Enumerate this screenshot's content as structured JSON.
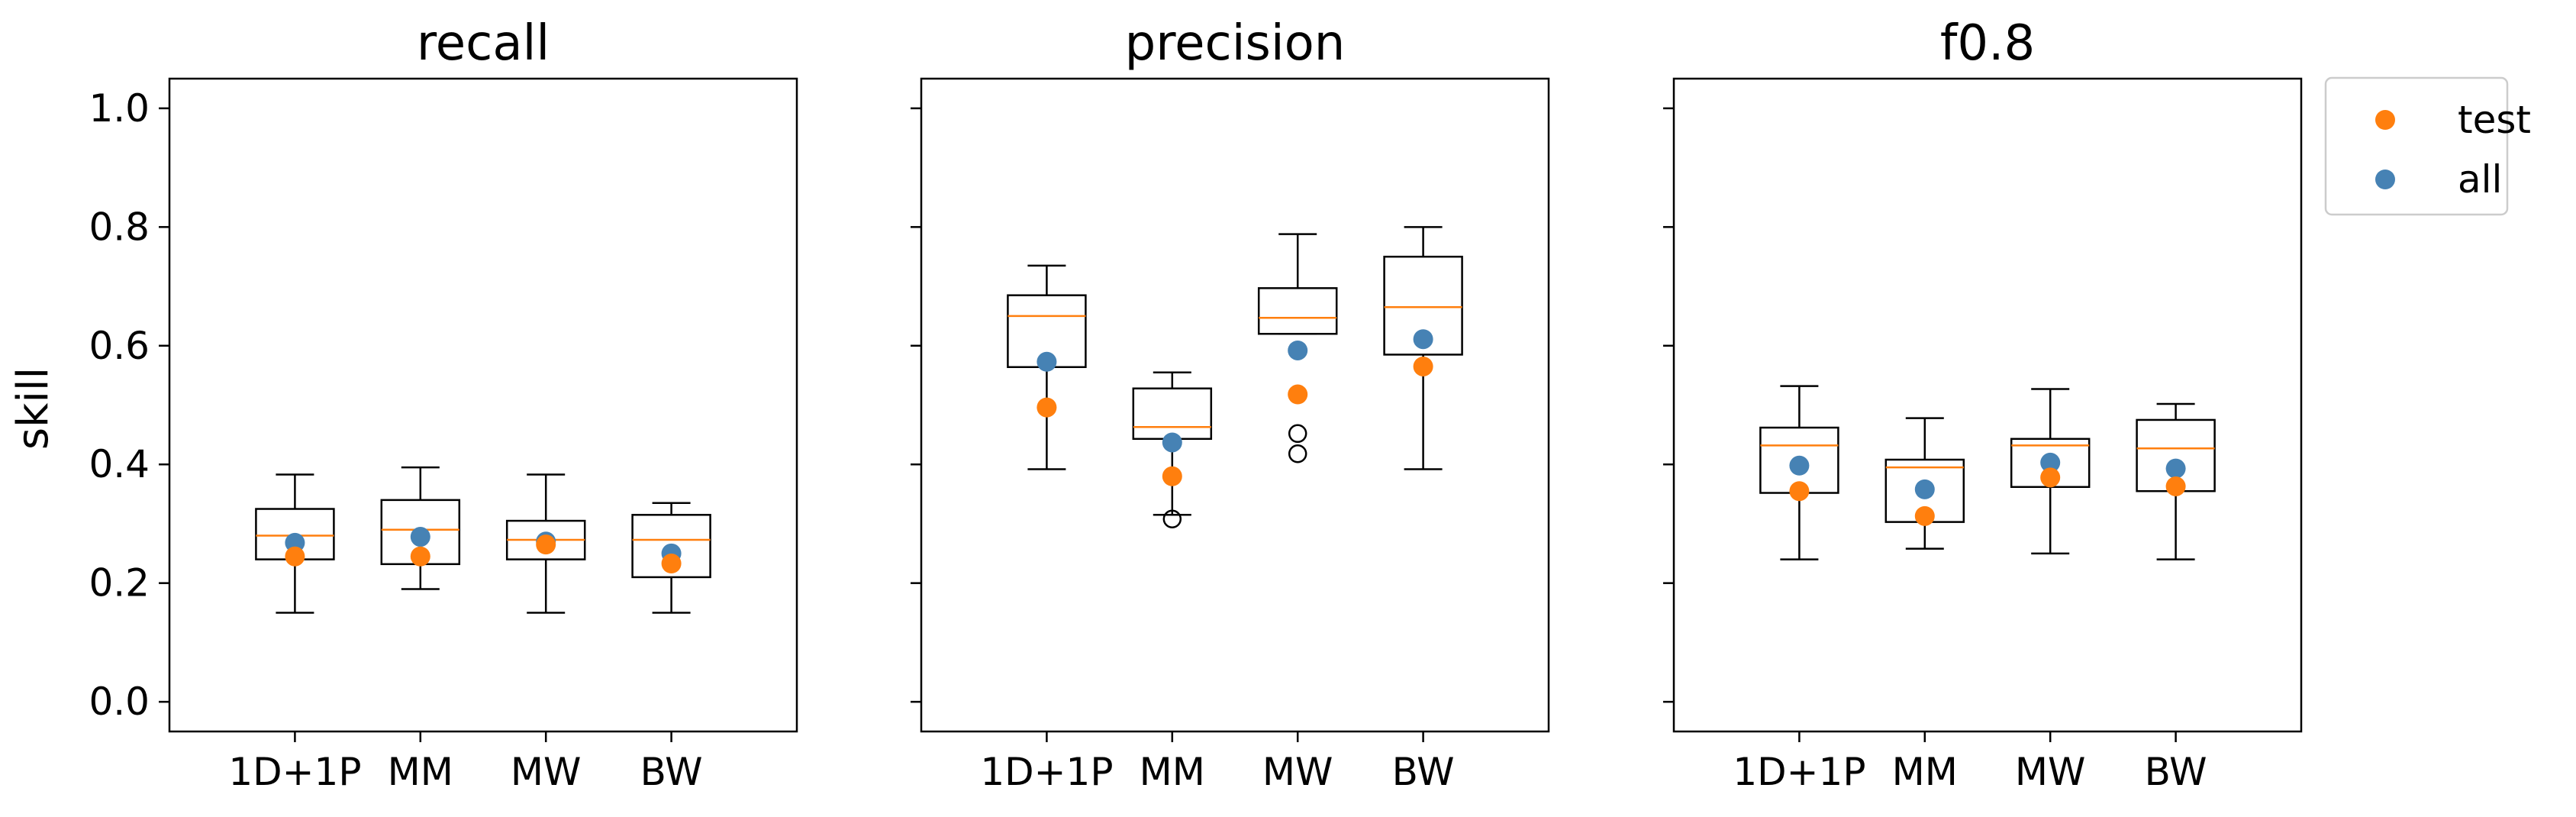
{
  "chart_data": {
    "type": "box",
    "ylabel": "skill",
    "ylim": [
      -0.05,
      1.05
    ],
    "yticks": [
      "0.0",
      "0.2",
      "0.4",
      "0.6",
      "0.8",
      "1.0"
    ],
    "categories": [
      "1D+1P",
      "MM",
      "MW",
      "BW"
    ],
    "legend": {
      "placement": "outside-top-right",
      "entries": [
        {
          "label": "test",
          "color": "#ff7f0e"
        },
        {
          "label": "all",
          "color": "#4682b4"
        }
      ]
    },
    "colors": {
      "median": "#ff7f0e",
      "test": "#ff7f0e",
      "all": "#4682b4",
      "box": "#000000"
    },
    "panels": [
      {
        "title": "recall",
        "boxes": [
          {
            "category": "1D+1P",
            "whisker_low": 0.15,
            "q1": 0.24,
            "median": 0.28,
            "q3": 0.325,
            "whisker_high": 0.383,
            "outliers": [],
            "test": 0.245,
            "all": 0.268
          },
          {
            "category": "MM",
            "whisker_low": 0.19,
            "q1": 0.232,
            "median": 0.29,
            "q3": 0.34,
            "whisker_high": 0.395,
            "outliers": [],
            "test": 0.245,
            "all": 0.278
          },
          {
            "category": "MW",
            "whisker_low": 0.15,
            "q1": 0.24,
            "median": 0.273,
            "q3": 0.305,
            "whisker_high": 0.383,
            "outliers": [],
            "test": 0.265,
            "all": 0.27
          },
          {
            "category": "BW",
            "whisker_low": 0.15,
            "q1": 0.21,
            "median": 0.273,
            "q3": 0.315,
            "whisker_high": 0.335,
            "outliers": [],
            "test": 0.233,
            "all": 0.25
          }
        ]
      },
      {
        "title": "precision",
        "boxes": [
          {
            "category": "1D+1P",
            "whisker_low": 0.392,
            "q1": 0.564,
            "median": 0.65,
            "q3": 0.685,
            "whisker_high": 0.735,
            "outliers": [],
            "test": 0.496,
            "all": 0.573
          },
          {
            "category": "MM",
            "whisker_low": 0.315,
            "q1": 0.443,
            "median": 0.463,
            "q3": 0.528,
            "whisker_high": 0.555,
            "outliers": [
              0.308
            ],
            "test": 0.38,
            "all": 0.437
          },
          {
            "category": "MW",
            "whisker_low": 0.62,
            "q1": 0.62,
            "median": 0.647,
            "q3": 0.697,
            "whisker_high": 0.788,
            "outliers": [
              0.452,
              0.418
            ],
            "test": 0.518,
            "all": 0.592
          },
          {
            "category": "BW",
            "whisker_low": 0.392,
            "q1": 0.585,
            "median": 0.665,
            "q3": 0.75,
            "whisker_high": 0.8,
            "outliers": [],
            "test": 0.565,
            "all": 0.611
          }
        ]
      },
      {
        "title": "f0.8",
        "boxes": [
          {
            "category": "1D+1P",
            "whisker_low": 0.24,
            "q1": 0.352,
            "median": 0.432,
            "q3": 0.462,
            "whisker_high": 0.532,
            "outliers": [],
            "test": 0.355,
            "all": 0.398
          },
          {
            "category": "MM",
            "whisker_low": 0.258,
            "q1": 0.303,
            "median": 0.395,
            "q3": 0.408,
            "whisker_high": 0.478,
            "outliers": [],
            "test": 0.313,
            "all": 0.358
          },
          {
            "category": "MW",
            "whisker_low": 0.25,
            "q1": 0.362,
            "median": 0.432,
            "q3": 0.443,
            "whisker_high": 0.527,
            "outliers": [],
            "test": 0.378,
            "all": 0.403
          },
          {
            "category": "BW",
            "whisker_low": 0.24,
            "q1": 0.355,
            "median": 0.427,
            "q3": 0.475,
            "whisker_high": 0.502,
            "outliers": [],
            "test": 0.363,
            "all": 0.393
          }
        ]
      }
    ]
  }
}
